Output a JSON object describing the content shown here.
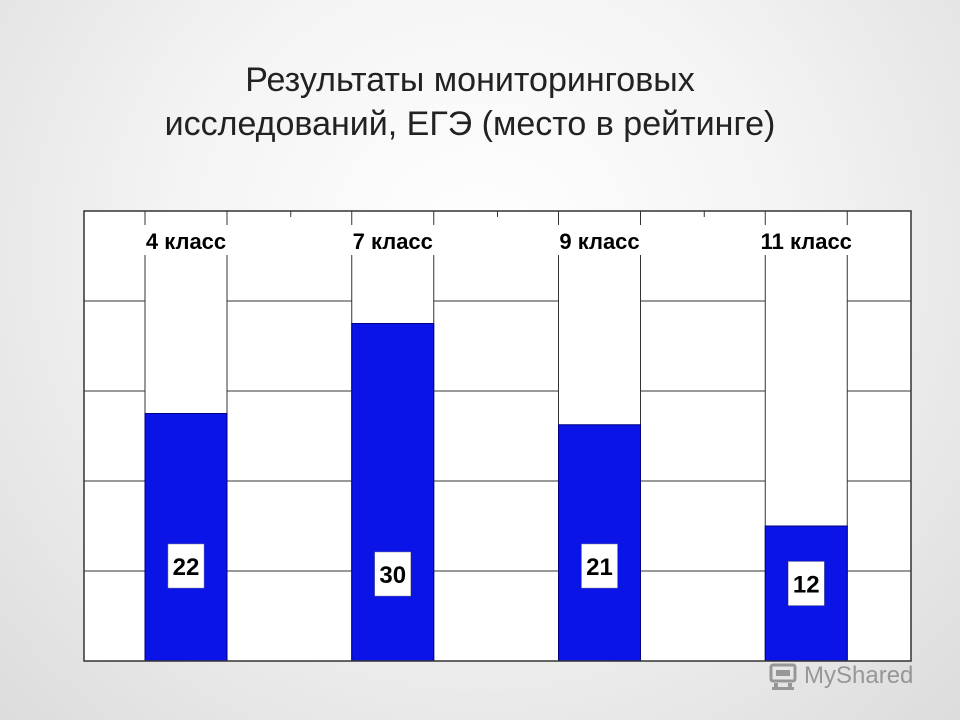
{
  "slide": {
    "title_line1": "Результаты мониторинговых",
    "title_line2": "исследований, ЕГЭ (место в рейтинге)"
  },
  "watermark": {
    "text": "MyShared",
    "icon": "myshared-logo-icon"
  },
  "colors": {
    "bar_fill": "#0a14e6",
    "bar_background": "#ffffff",
    "grid": "#333333",
    "label_text": "#000000"
  },
  "chart_data": {
    "type": "bar",
    "stacked_to": 40,
    "categories": [
      "4 класс",
      "7 класс",
      "9 класс",
      "11 класс"
    ],
    "values": [
      22,
      30,
      21,
      12
    ],
    "value_labels": [
      "22",
      "30",
      "21",
      "12"
    ],
    "title": "",
    "xlabel": "",
    "ylabel": "",
    "ylim": [
      0,
      40
    ],
    "grid": true,
    "legend": "none",
    "reversed_rank_scale": true
  }
}
